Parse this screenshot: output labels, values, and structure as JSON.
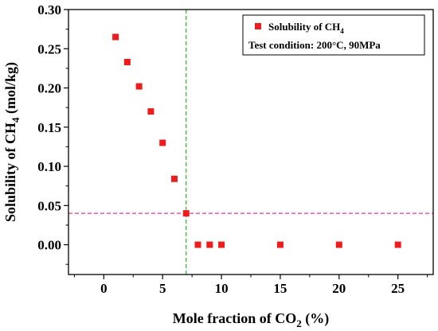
{
  "chart_data": {
    "type": "scatter",
    "xlabel": {
      "prefix": "Mole fraction of CO",
      "sub": "2",
      "suffix": " (%)"
    },
    "ylabel": {
      "prefix": "Solubility of CH",
      "sub": "4",
      "suffix": " (mol/kg)"
    },
    "xlim": [
      -3,
      28
    ],
    "ylim": [
      -0.038,
      0.3
    ],
    "xticks": [
      0,
      5,
      10,
      15,
      20,
      25
    ],
    "xtick_labels": [
      "0",
      "5",
      "10",
      "15",
      "20",
      "25"
    ],
    "yticks": [
      0.0,
      0.05,
      0.1,
      0.15,
      0.2,
      0.25,
      0.3
    ],
    "ytick_labels": [
      "0.00",
      "0.05",
      "0.10",
      "0.15",
      "0.20",
      "0.25",
      "0.30"
    ],
    "grid": false,
    "legend_position": "top-right",
    "series": [
      {
        "name": {
          "prefix": "Solubility of CH",
          "sub": "4",
          "suffix": ""
        },
        "color": "#ee1c1c",
        "marker": "square",
        "x": [
          1,
          2,
          3,
          4,
          5,
          6,
          7,
          8,
          9,
          10,
          15,
          20,
          25
        ],
        "y": [
          0.265,
          0.233,
          0.202,
          0.17,
          0.13,
          0.084,
          0.04,
          0.0,
          0.0,
          0.0,
          0.0,
          0.0,
          0.0
        ]
      }
    ],
    "annotation": "Test condition: 200°C, 90MPa",
    "reference_lines": [
      {
        "orientation": "vertical",
        "value": 7,
        "color": "#22bb22",
        "style": "dashed"
      },
      {
        "orientation": "horizontal",
        "value": 0.04,
        "color": "#ee3399",
        "style": "dashed"
      }
    ]
  }
}
